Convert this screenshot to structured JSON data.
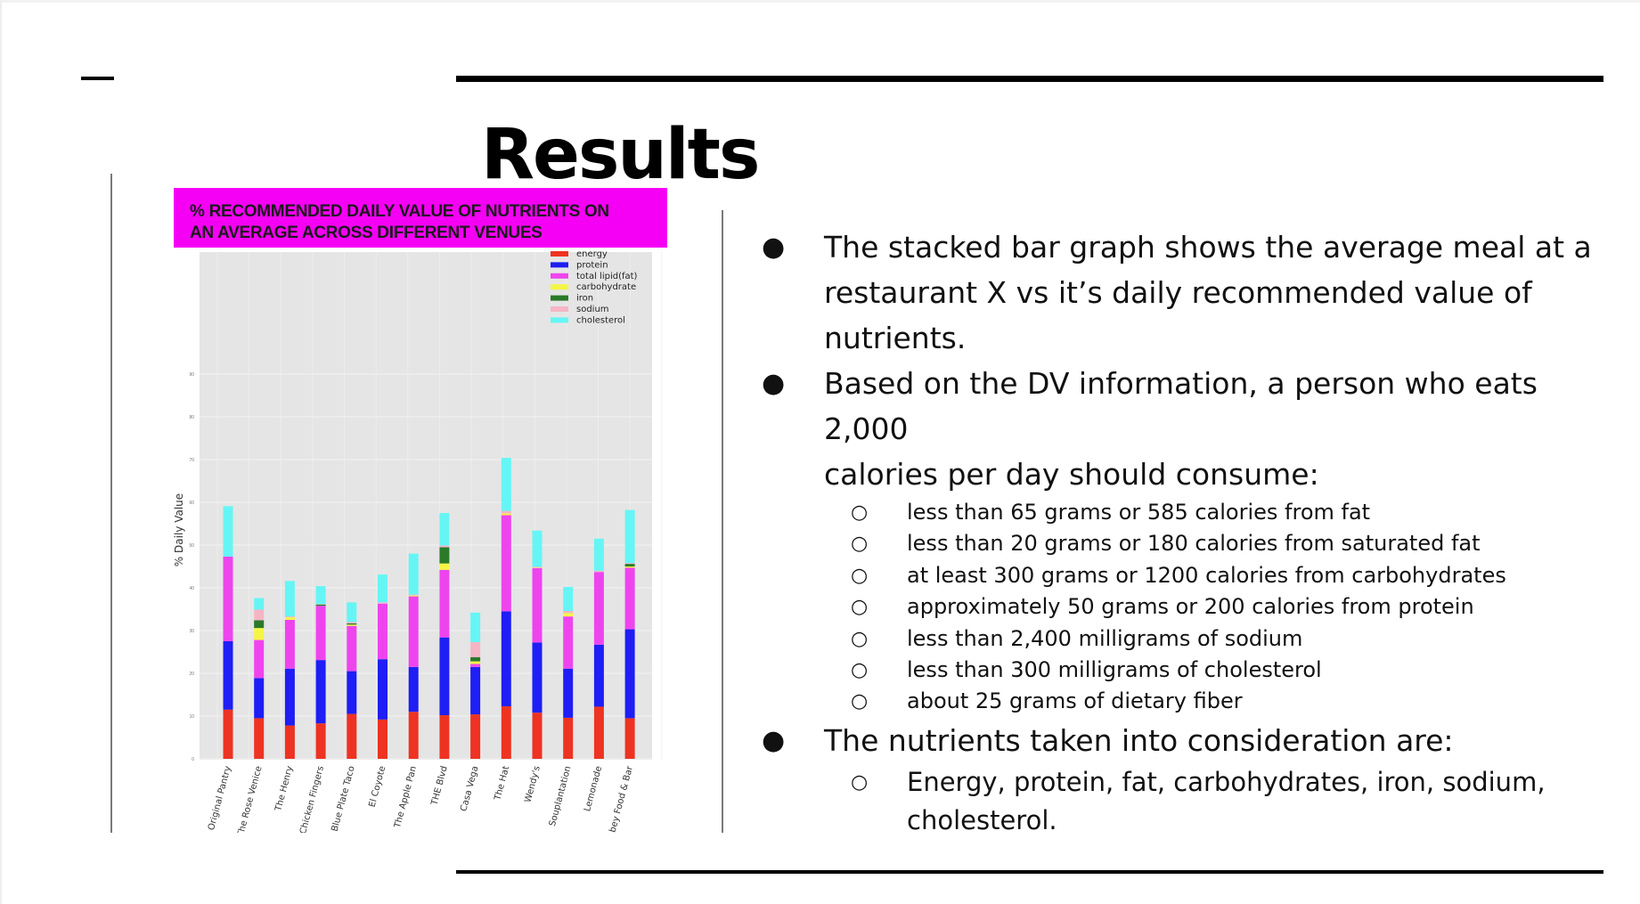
{
  "slide": {
    "title": "Results"
  },
  "chart_banner": {
    "line1": "% RECOMMENDED DAILY VALUE OF NUTRIENTS ON",
    "line2": "AN AVERAGE ACROSS DIFFERENT VENUES"
  },
  "chart_data": {
    "type": "bar",
    "stacked": true,
    "title": "% RECOMMENDED DAILY VALUE OF NUTRIENTS ON AN AVERAGE ACROSS DIFFERENT VENUES",
    "xlabel": "",
    "ylabel": "% Daily Value",
    "ylim": [
      0,
      90
    ],
    "yticks": [
      0,
      10,
      20,
      30,
      40,
      50,
      60,
      70,
      80,
      90
    ],
    "grid": true,
    "legend_position": "top-right",
    "categories": [
      "The Original Pantry",
      "The Rose Venice",
      "The Henry",
      "e's Chicken Fingers",
      "Blue Plate Taco",
      "El Coyote",
      "The Apple Pan",
      "THE Blvd",
      "Casa Vega",
      "The Hat",
      "Wendy's",
      "Souplantation",
      "Lemonade",
      "Abbey Food & Bar"
    ],
    "series": [
      {
        "name": "energy",
        "color": "#ee3322",
        "values": [
          11.5,
          9.5,
          7.8,
          8.3,
          10.5,
          9.2,
          11,
          10.2,
          10.4,
          12.3,
          10.8,
          9.6,
          12.2,
          9.5
        ]
      },
      {
        "name": "protein",
        "color": "#1e1ef5",
        "values": [
          16,
          9.4,
          13.3,
          14.8,
          10,
          14.1,
          10.5,
          18.2,
          11.1,
          22.2,
          16.4,
          11.5,
          14.5,
          20.8
        ]
      },
      {
        "name": "total lipid(fat)",
        "color": "#ee44ee",
        "values": [
          19.8,
          8.9,
          11.4,
          12.7,
          10.6,
          13,
          16.5,
          15.8,
          0.7,
          22.5,
          17.4,
          12.2,
          17,
          14.4
        ]
      },
      {
        "name": "carbohydrate",
        "color": "#f5f545",
        "values": [
          0,
          2.8,
          0.6,
          0,
          0.3,
          0,
          0.2,
          1.5,
          0.6,
          0.4,
          0.1,
          0.8,
          0,
          0.3
        ]
      },
      {
        "name": "iron",
        "color": "#2a7a2a",
        "values": [
          0,
          1.8,
          0,
          0.3,
          0.3,
          0,
          0,
          3.8,
          1,
          0,
          0,
          0,
          0,
          0.6
        ]
      },
      {
        "name": "sodium",
        "color": "#f5b5c5",
        "values": [
          0,
          2.5,
          0.2,
          0.1,
          0.3,
          0.3,
          0.2,
          0.4,
          3.5,
          0.6,
          0.2,
          0.5,
          0.3,
          0.2
        ]
      },
      {
        "name": "cholesterol",
        "color": "#66f5f5",
        "values": [
          11.8,
          2.7,
          8.3,
          4.2,
          4.6,
          6.5,
          9.6,
          7.6,
          6.9,
          12.4,
          8.5,
          5.6,
          7.5,
          12.4
        ]
      }
    ]
  },
  "bullets": [
    {
      "text": "The stacked bar graph shows the average meal at a",
      "text2": "restaurant X vs it’s daily recommended value of",
      "text3": "nutrients."
    },
    {
      "text": "Based on the DV information, a person who eats 2,000",
      "text2": "calories per day should consume:",
      "subitems": [
        "less than 65 grams or 585 calories from fat",
        "less than 20 grams or 180 calories from saturated fat",
        "at least 300 grams or 1200 calories from carbohydrates",
        "approximately 50 grams or 200 calories from protein",
        "less than 2,400 milligrams of sodium",
        "less than 300 milligrams of cholesterol",
        "about 25 grams of dietary fiber"
      ]
    },
    {
      "text": "The nutrients taken into consideration are:",
      "subitems": [
        "Energy, protein, fat, carbohydrates, iron, sodium,"
      ],
      "subitem_cont": "cholesterol."
    }
  ],
  "markers": {
    "bullet": "●",
    "sub": "○"
  }
}
